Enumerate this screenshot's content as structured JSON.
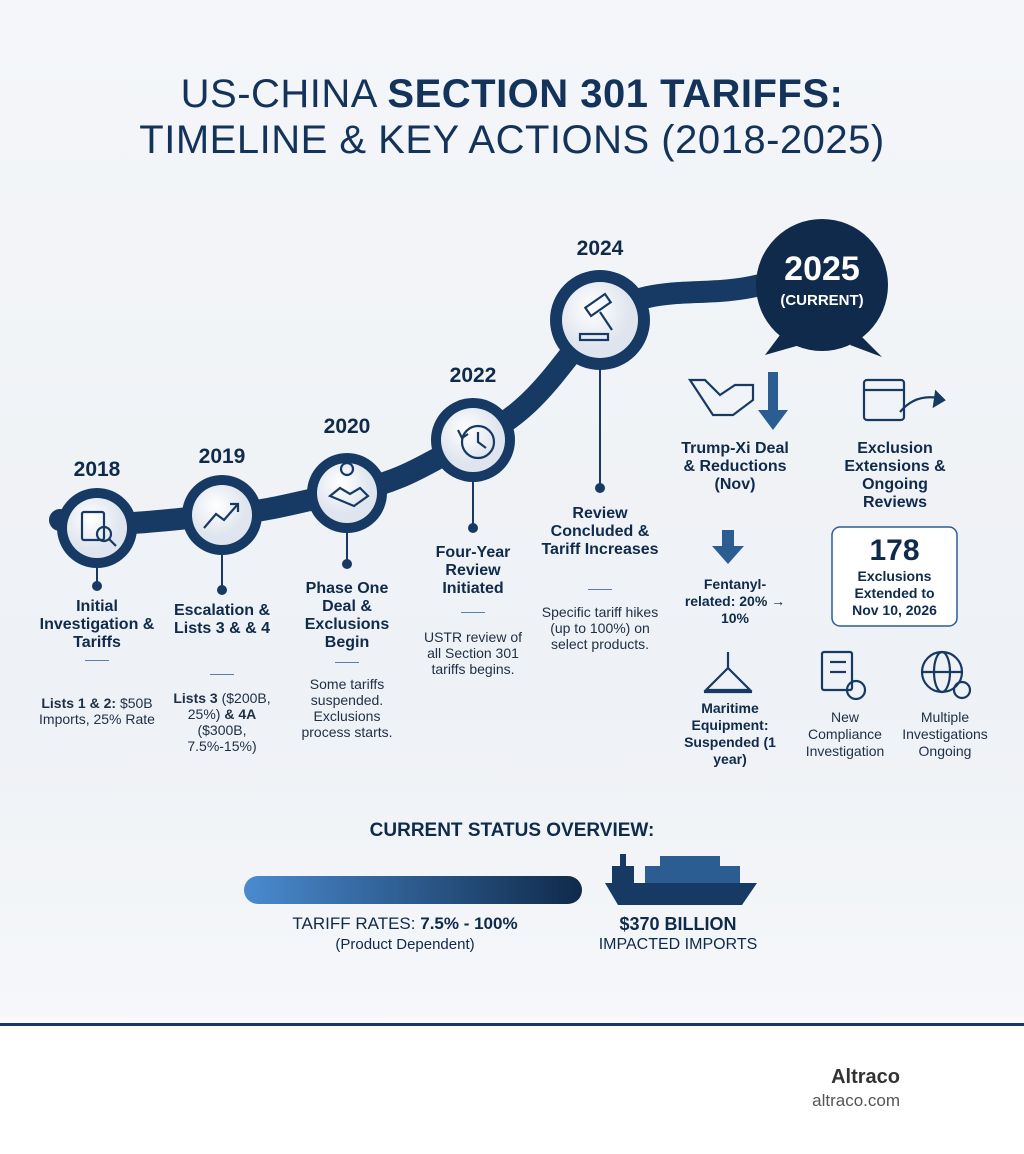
{
  "title": {
    "line1_light": "US-CHINA",
    "line1_bold": "SECTION 301 TARIFFS:",
    "line2": "TIMELINE & KEY ACTIONS (2018-2025)"
  },
  "milestones": [
    {
      "year": "2018",
      "title": "Initial Investigation & Tariffs",
      "detail": [
        "Lists 1 & 2:",
        "$50B Imports, 25% Rate"
      ]
    },
    {
      "year": "2019",
      "title": "Escalation & Lists 3 & & 4",
      "detail": [
        "Lists 3",
        "($200B, 25%)",
        "& 4A",
        "($300B, 7.5%-15%)"
      ]
    },
    {
      "year": "2020",
      "title": "Phase One Deal & Exclusions Begin",
      "detail": [
        "Some tariffs suspended. Exclusions process starts."
      ]
    },
    {
      "year": "2022",
      "title": "Four-Year Review Initiated",
      "detail": [
        "USTR review of all Section 301 tariffs begins."
      ]
    },
    {
      "year": "2024",
      "title": "Review Concluded & Tariff Increases",
      "detail": [
        "Specific tariff hikes (up to 100%) on select products."
      ]
    }
  ],
  "current": {
    "year": "2025",
    "label": "(CURRENT)",
    "left": {
      "title": "Trump-Xi Deal & Reductions (Nov)",
      "fentanyl": "Fentanyl-related: 20% → 10%",
      "maritime": "Maritime Equipment: Suspended (1 year)"
    },
    "right": {
      "title": "Exclusion Extensions & Ongoing Reviews",
      "count": "178",
      "count_text": "Exclusions Extended to Nov 10, 2026",
      "compliance": "New Compliance Investigation",
      "multiple": "Multiple Investigations Ongoing"
    }
  },
  "status": {
    "heading": "CURRENT STATUS OVERVIEW:",
    "rates_label": "TARIFF RATES:",
    "rates_value": "7.5% - 100%",
    "rates_note": "(Product Dependent)",
    "imports_value": "$370 BILLION",
    "imports_label": "IMPACTED IMPORTS"
  },
  "footer": {
    "brand": "Altraco",
    "url": "altraco.com"
  }
}
